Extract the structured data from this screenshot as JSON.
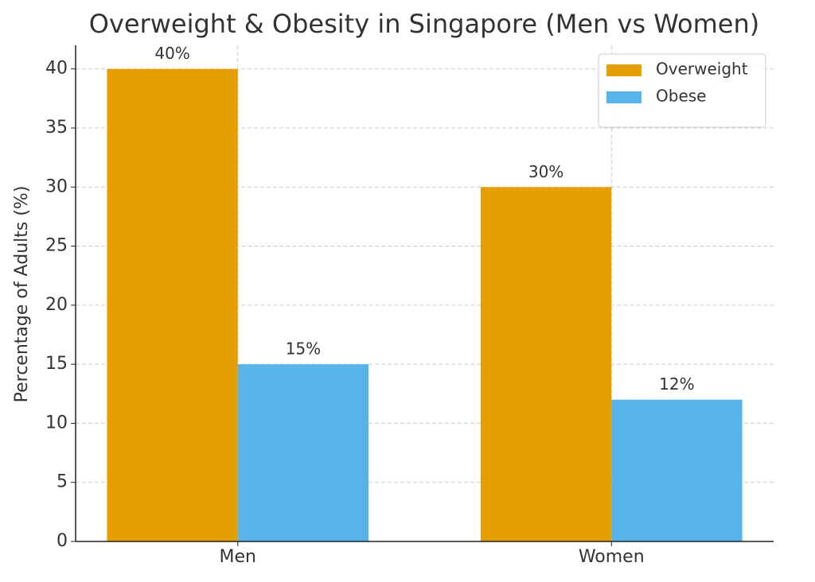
{
  "chart_data": {
    "type": "bar",
    "title": "Overweight & Obesity in Singapore (Men vs Women)",
    "y_label": "Percentage of Adults (%)",
    "categories": [
      "Men",
      "Women"
    ],
    "series": [
      {
        "name": "Overweight",
        "color": "#E69F00",
        "values": [
          40,
          30
        ],
        "value_labels": [
          "40%",
          "30%"
        ]
      },
      {
        "name": "Obese",
        "color": "#56B4E9",
        "values": [
          15,
          12
        ],
        "value_labels": [
          "15%",
          "12%"
        ]
      }
    ],
    "ylim": [
      0,
      42
    ],
    "yticks": [
      0,
      5,
      10,
      15,
      20,
      25,
      30,
      35,
      40
    ],
    "grid": true,
    "legend": "upper-right"
  }
}
